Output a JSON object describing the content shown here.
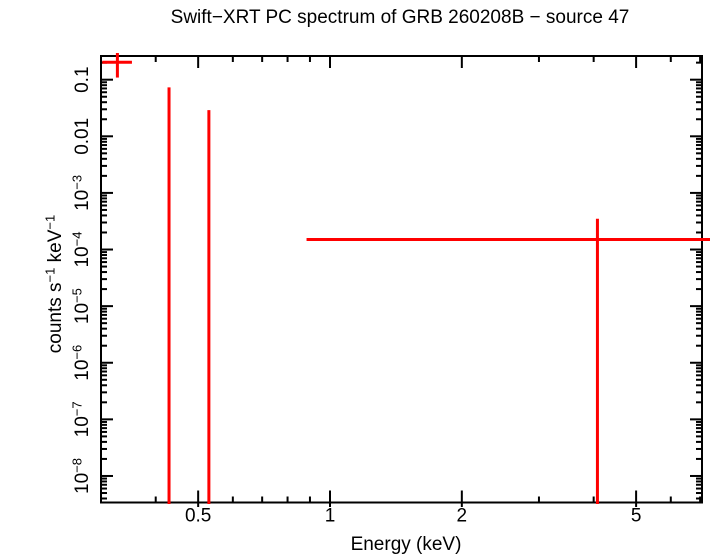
{
  "chart_data": {
    "type": "scatter",
    "title": "Swift−XRT PC spectrum of GRB 260208B − source 47",
    "xlabel": "Energy (keV)",
    "ylabel": "counts s⁻¹ keV⁻¹",
    "ylabel_segments": [
      {
        "t": "counts s"
      },
      {
        "t": "−1",
        "sup": true
      },
      {
        "t": " keV"
      },
      {
        "t": "−1",
        "sup": true
      }
    ],
    "x_scale": "log",
    "y_scale": "log",
    "xlim": [
      0.3,
      7.07
    ],
    "ylim": [
      3.4e-09,
      0.262
    ],
    "grid": false,
    "legend": null,
    "color": "#ff0000",
    "frame_color": "#000000",
    "x_major_ticks": [
      {
        "v": 0.5,
        "label": "0.5"
      },
      {
        "v": 1,
        "label": "1"
      },
      {
        "v": 2,
        "label": "2"
      },
      {
        "v": 5,
        "label": "5"
      }
    ],
    "x_minor_ticks": [
      0.4,
      0.6,
      0.7,
      0.8,
      0.9,
      3,
      4,
      6,
      7
    ],
    "y_major_ticks": [
      {
        "v": 0.1,
        "base": "0.1"
      },
      {
        "v": 0.01,
        "base": "0.01"
      },
      {
        "v": 0.001,
        "base": "10",
        "exp": "−3"
      },
      {
        "v": 0.0001,
        "base": "10",
        "exp": "−4"
      },
      {
        "v": 1e-05,
        "base": "10",
        "exp": "−5"
      },
      {
        "v": 1e-06,
        "base": "10",
        "exp": "−6"
      },
      {
        "v": 1e-07,
        "base": "10",
        "exp": "−7"
      },
      {
        "v": 1e-08,
        "base": "10",
        "exp": "−8"
      }
    ],
    "points": [
      {
        "x": 0.327,
        "x_lo": 0.302,
        "x_hi": 0.353,
        "y": 0.203,
        "y_lo": 0.109,
        "y_hi": 0.296
      },
      {
        "x": 0.429,
        "y_hi": 0.073,
        "y_lo_offscale": true
      },
      {
        "x": 0.529,
        "y_hi": 0.029,
        "y_lo_offscale": true
      },
      {
        "x": 4.08,
        "x_lo": 0.884,
        "x_hi": 7.4,
        "x_hi_offscale": true,
        "y": 0.00015,
        "y_hi": 0.00035,
        "y_lo_offscale": true
      }
    ]
  }
}
